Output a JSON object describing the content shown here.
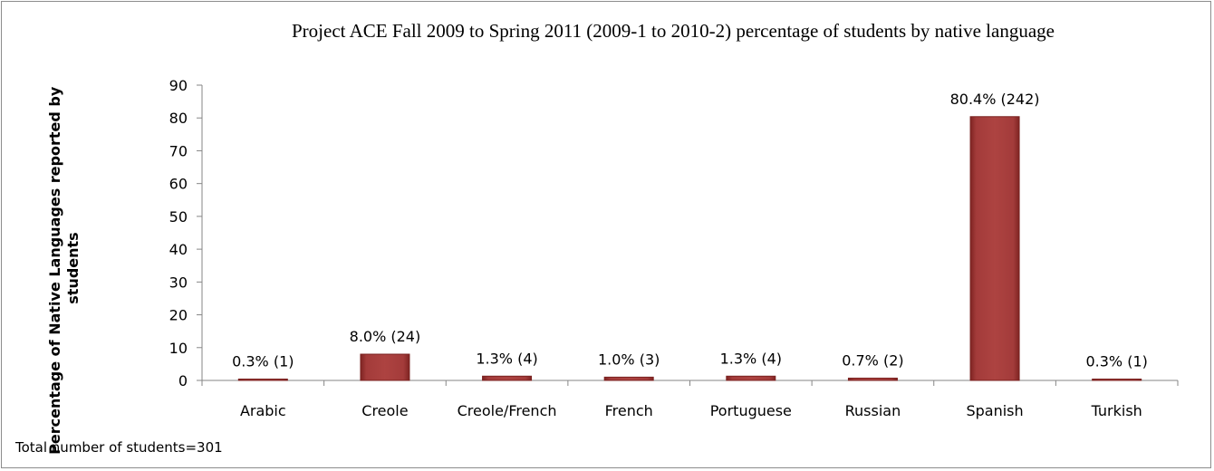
{
  "chart_data": {
    "type": "bar",
    "title": "Project ACE Fall 2009 to Spring 2011 (2009-1 to 2010-2)  percentage of students by native language",
    "xlabel": "",
    "ylabel": "Percentage of Native Languages reported by students",
    "ylim": [
      0,
      90
    ],
    "yticks": [
      "0",
      "10",
      "20",
      "30",
      "40",
      "50",
      "60",
      "70",
      "80",
      "90"
    ],
    "grid": false,
    "legend": "none",
    "categories": [
      "Arabic",
      "Creole",
      "Creole/French",
      "French",
      "Portuguese",
      "Russian",
      "Spanish",
      "Turkish"
    ],
    "values": [
      0.3,
      8.0,
      1.3,
      1.0,
      1.3,
      0.7,
      80.4,
      0.3
    ],
    "data_labels": [
      "0.3% (1)",
      "8.0% (24)",
      "1.3% (4)",
      "1.0% (3)",
      "1.3% (4)",
      "0.7% (2)",
      "80.4% (242)",
      "0.3% (1)"
    ],
    "bar_color": "#a33b3a",
    "footnote": "Total number of students=301"
  }
}
